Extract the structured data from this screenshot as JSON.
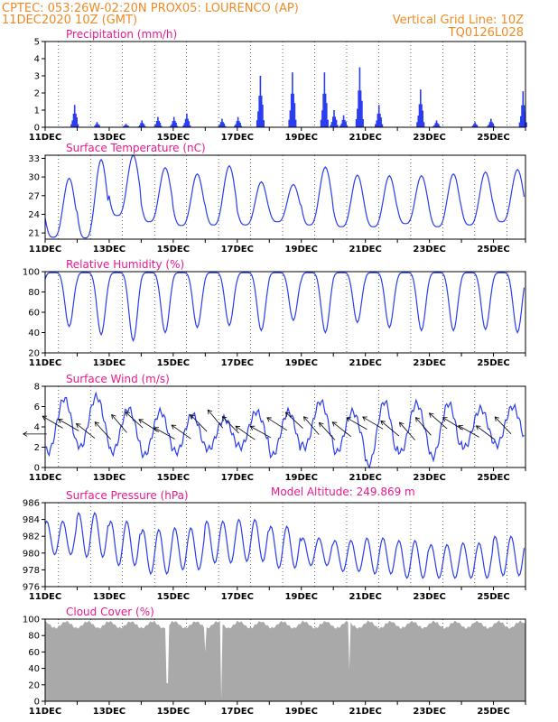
{
  "header": {
    "line1": "CPTEC:   053:26W-02:20N   PROX05: LOURENCO (AP)",
    "line2_left": "11DEC2020  10Z (GMT)",
    "line2_right": "Vertical Grid Line: 10Z",
    "line3_right": "TQ0126L028"
  },
  "colors": {
    "header": "#f08a24",
    "title": "#e8198b",
    "series": "#2a3df0",
    "cloud": "#a9a9a9"
  },
  "chart_data": [
    {
      "type": "bar",
      "title": "Precipitation (mm/h)",
      "ylim": [
        0,
        5
      ],
      "yticks": [
        0,
        1,
        2,
        3,
        4,
        5
      ],
      "x_tick_labels": [
        "11DEC",
        "13DEC",
        "15DEC",
        "17DEC",
        "19DEC",
        "21DEC",
        "23DEC",
        "25DEC"
      ],
      "peaks": [
        {
          "day": 11.9,
          "value": 1.3
        },
        {
          "day": 12.6,
          "value": 0.3
        },
        {
          "day": 13.5,
          "value": 0.2
        },
        {
          "day": 14.0,
          "value": 0.4
        },
        {
          "day": 14.5,
          "value": 0.6
        },
        {
          "day": 15.0,
          "value": 0.6
        },
        {
          "day": 15.4,
          "value": 0.8
        },
        {
          "day": 16.5,
          "value": 0.5
        },
        {
          "day": 17.0,
          "value": 0.6
        },
        {
          "day": 17.7,
          "value": 3.0
        },
        {
          "day": 18.7,
          "value": 3.2
        },
        {
          "day": 19.7,
          "value": 3.2
        },
        {
          "day": 20.0,
          "value": 1.0
        },
        {
          "day": 20.3,
          "value": 0.7
        },
        {
          "day": 20.8,
          "value": 3.5
        },
        {
          "day": 21.4,
          "value": 1.3
        },
        {
          "day": 22.7,
          "value": 2.2
        },
        {
          "day": 23.2,
          "value": 0.4
        },
        {
          "day": 24.4,
          "value": 0.3
        },
        {
          "day": 24.9,
          "value": 0.5
        },
        {
          "day": 25.9,
          "value": 2.1
        }
      ]
    },
    {
      "type": "line",
      "title": "Surface Temperature (nC)",
      "ylim": [
        20,
        33.5
      ],
      "yticks": [
        21,
        24,
        27,
        30,
        33
      ],
      "x_tick_labels": [
        "11DEC",
        "13DEC",
        "15DEC",
        "17DEC",
        "19DEC",
        "21DEC",
        "23DEC",
        "25DEC"
      ],
      "daily_max": [
        29.8,
        32.8,
        33.5,
        31.5,
        30.5,
        31.8,
        29.2,
        28.8,
        31.6,
        30.3,
        30.2,
        30.2,
        30.5,
        30.8,
        31.2
      ],
      "daily_min": [
        20.3,
        20.2,
        23.8,
        22.8,
        22.2,
        22.3,
        22.3,
        22.8,
        22.3,
        22.0,
        22.0,
        22.5,
        22.0,
        22.3,
        22.8
      ]
    },
    {
      "type": "line",
      "title": "Relative Humidity (%)",
      "ylim": [
        20,
        100
      ],
      "yticks": [
        20,
        40,
        60,
        80,
        100
      ],
      "x_tick_labels": [
        "11DEC",
        "13DEC",
        "15DEC",
        "17DEC",
        "19DEC",
        "21DEC",
        "23DEC",
        "25DEC"
      ],
      "daily_min": [
        46,
        38,
        32,
        40,
        45,
        47,
        42,
        52,
        40,
        50,
        45,
        42,
        42,
        43,
        40
      ]
    },
    {
      "type": "line",
      "title": "Surface Wind (m/s)",
      "ylim": [
        0,
        8
      ],
      "yticks": [
        0,
        2,
        4,
        6,
        8
      ],
      "x_tick_labels": [
        "11DEC",
        "13DEC",
        "15DEC",
        "17DEC",
        "19DEC",
        "21DEC",
        "23DEC",
        "25DEC"
      ],
      "daily_max": [
        6.8,
        7.0,
        5.8,
        5.5,
        5.2,
        4.8,
        5.5,
        5.5,
        6.5,
        5.5,
        6.5,
        6.3,
        6.3,
        5.8,
        6.0
      ],
      "daily_min": [
        1.5,
        2.0,
        1.5,
        1.2,
        1.5,
        1.8,
        2.0,
        1.2,
        2.0,
        1.5,
        0.2,
        1.5,
        1.0,
        2.0,
        2.2
      ],
      "vector_note": "arrows show wind direction (from ENE)"
    },
    {
      "type": "line",
      "title": "Surface Pressure (hPa)",
      "annotation": "Model Altitude: 249.869  m",
      "ylim": [
        976,
        986
      ],
      "yticks": [
        976,
        978,
        980,
        982,
        984,
        986
      ],
      "x_tick_labels": [
        "11DEC",
        "13DEC",
        "15DEC",
        "17DEC",
        "19DEC",
        "21DEC",
        "23DEC",
        "25DEC"
      ],
      "daily_max": [
        983.8,
        984.8,
        983.8,
        982.8,
        983.0,
        983.8,
        984.0,
        983.2,
        981.8,
        981.5,
        981.8,
        981.5,
        981.0,
        981.2,
        982.0
      ],
      "daily_min": [
        979.8,
        979.5,
        978.5,
        977.5,
        978.0,
        978.8,
        979.0,
        978.2,
        978.5,
        977.8,
        977.5,
        977.0,
        977.0,
        977.0,
        977.3
      ]
    },
    {
      "type": "area",
      "title": "Cloud Cover (%)",
      "ylim": [
        0,
        100
      ],
      "yticks": [
        0,
        20,
        40,
        60,
        80,
        100
      ],
      "x_tick_labels": [
        "11DEC",
        "13DEC",
        "15DEC",
        "17DEC",
        "19DEC",
        "21DEC",
        "23DEC",
        "25DEC"
      ],
      "typical_value": 95,
      "dips": [
        {
          "day": 14.8,
          "value": 22
        },
        {
          "day": 16.0,
          "value": 60
        },
        {
          "day": 16.5,
          "value": 2
        },
        {
          "day": 20.5,
          "value": 38
        }
      ]
    }
  ]
}
